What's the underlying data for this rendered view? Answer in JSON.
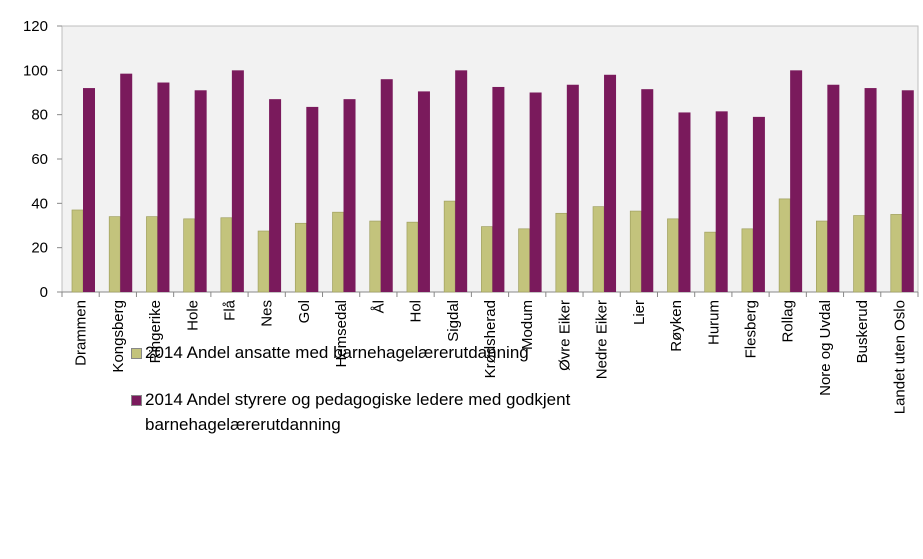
{
  "chart_data": {
    "type": "bar",
    "categories": [
      "Drammen",
      "Kongsberg",
      "Ringerike",
      "Hole",
      "Flå",
      "Nes",
      "Gol",
      "Hemsedal",
      "Ål",
      "Hol",
      "Sigdal",
      "Krødsherad",
      "Modum",
      "Øvre Eiker",
      "Nedre Eiker",
      "Lier",
      "Røyken",
      "Hurum",
      "Flesberg",
      "Rollag",
      "Nore og Uvdal",
      "Buskerud",
      "Landet uten Oslo"
    ],
    "series": [
      {
        "name": "2014 Andel ansatte med barnehagelærerutdanning",
        "color": "#c3c37c",
        "values": [
          37,
          34,
          34,
          33,
          33.5,
          27.5,
          31,
          36,
          32,
          31.5,
          41,
          29.5,
          28.5,
          35.5,
          38.5,
          36.5,
          33,
          27,
          28.5,
          42,
          32,
          34.5,
          35
        ]
      },
      {
        "name": "2014 Andel styrere og pedagogiske ledere med godkjent barnehagelærerutdanning",
        "color": "#7a1a5c",
        "values": [
          92,
          98.5,
          94.5,
          91,
          100,
          87,
          83.5,
          87,
          96,
          90.5,
          100,
          92.5,
          90,
          93.5,
          98,
          91.5,
          81,
          81.5,
          79,
          100,
          93.5,
          92,
          91
        ]
      }
    ],
    "ylim": [
      0,
      120
    ],
    "yticks": [
      0,
      20,
      40,
      60,
      80,
      100,
      120
    ],
    "grid": false,
    "legend": "bottom"
  }
}
